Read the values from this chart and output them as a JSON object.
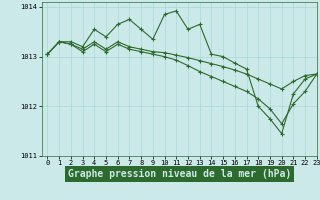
{
  "bg_color": "#cce9e9",
  "line_color": "#2d6a2d",
  "grid_color": "#a8d8d8",
  "title": "Graphe pression niveau de la mer (hPa)",
  "xlim": [
    -0.5,
    23
  ],
  "ylim": [
    1011,
    1014.1
  ],
  "xticks": [
    0,
    1,
    2,
    3,
    4,
    5,
    6,
    7,
    8,
    9,
    10,
    11,
    12,
    13,
    14,
    15,
    16,
    17,
    18,
    19,
    20,
    21,
    22,
    23
  ],
  "yticks": [
    1011,
    1012,
    1013,
    1014
  ],
  "series": [
    {
      "x": [
        0,
        1,
        2,
        3,
        4,
        5,
        6,
        7,
        8,
        9,
        10,
        11,
        12,
        13,
        14,
        15,
        16,
        17,
        18,
        19,
        20,
        21,
        22,
        23
      ],
      "y": [
        1013.05,
        1013.3,
        1013.3,
        1013.2,
        1013.55,
        1013.4,
        1013.65,
        1013.75,
        1013.55,
        1013.35,
        1013.85,
        1013.92,
        1013.55,
        1013.65,
        1013.05,
        1013.0,
        1012.87,
        1012.75,
        1012.0,
        1011.75,
        1011.45,
        1012.25,
        1012.55,
        1012.65
      ]
    },
    {
      "x": [
        0,
        1,
        2,
        3,
        4,
        5,
        6,
        7,
        8,
        9,
        10,
        11,
        12,
        13,
        14,
        15,
        16,
        17,
        18,
        19,
        20,
        21,
        22,
        23
      ],
      "y": [
        1013.05,
        1013.3,
        1013.25,
        1013.15,
        1013.3,
        1013.15,
        1013.3,
        1013.2,
        1013.15,
        1013.1,
        1013.08,
        1013.03,
        1012.98,
        1012.92,
        1012.86,
        1012.8,
        1012.73,
        1012.65,
        1012.55,
        1012.45,
        1012.35,
        1012.5,
        1012.62,
        1012.65
      ]
    },
    {
      "x": [
        0,
        1,
        2,
        3,
        4,
        5,
        6,
        7,
        8,
        9,
        10,
        11,
        12,
        13,
        14,
        15,
        16,
        17,
        18,
        19,
        20,
        21,
        22,
        23
      ],
      "y": [
        1013.05,
        1013.3,
        1013.25,
        1013.1,
        1013.25,
        1013.1,
        1013.25,
        1013.15,
        1013.1,
        1013.05,
        1013.0,
        1012.93,
        1012.82,
        1012.7,
        1012.6,
        1012.5,
        1012.4,
        1012.3,
        1012.15,
        1011.95,
        1011.65,
        1012.05,
        1012.3,
        1012.65
      ]
    }
  ],
  "marker": "+",
  "markersize": 3.5,
  "linewidth": 0.8,
  "title_fontsize": 7,
  "tick_fontsize": 5,
  "title_bg": "#2d6a2d",
  "title_fg": "#cce9e9"
}
